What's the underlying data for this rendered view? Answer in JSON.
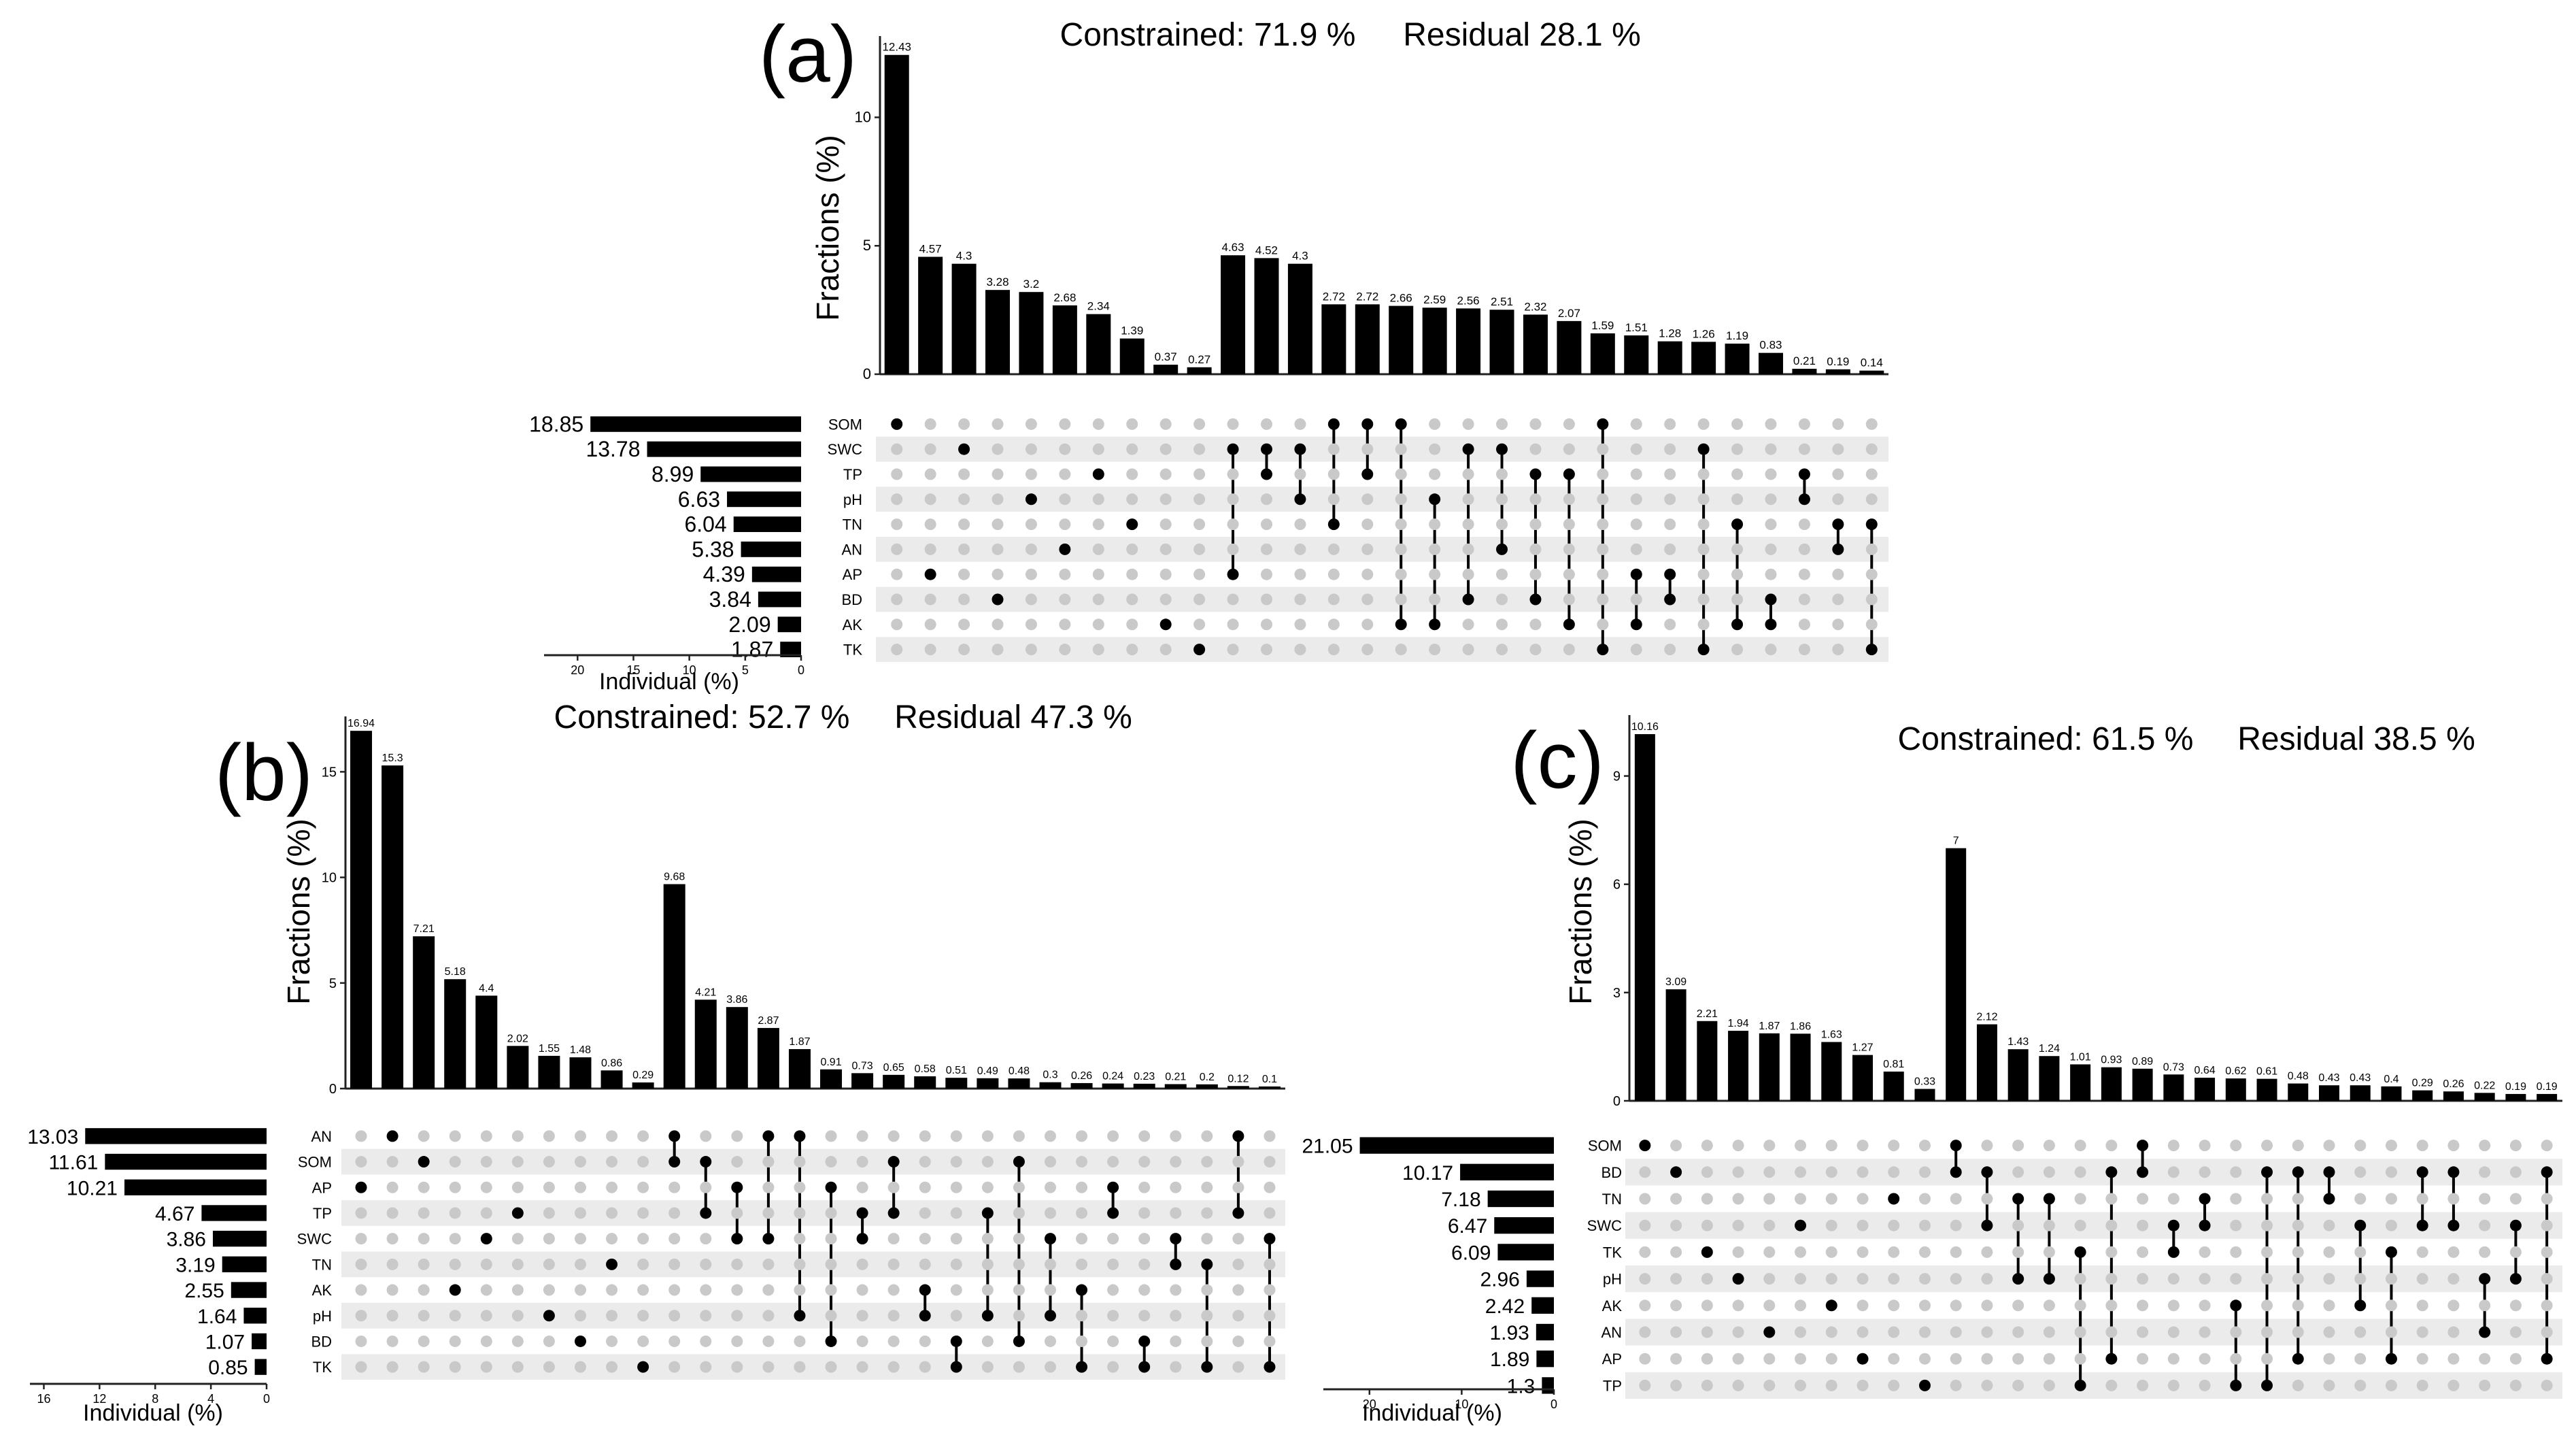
{
  "chart_data": [
    {
      "type": "bar",
      "panel_label": "(a)",
      "constrained_text": "Constrained: 71.9 %",
      "residual_text": "Residual 28.1 %",
      "ylabel": "Fractions (%)",
      "ylim": [
        0,
        12.9
      ],
      "yticks": [
        0,
        5,
        10
      ],
      "xlabel_individual": "Individual (%)",
      "individual_xlim": [
        0,
        23
      ],
      "individual_ticks": [
        20,
        15,
        10,
        5,
        0
      ],
      "sets": [
        "SOM",
        "SWC",
        "TP",
        "pH",
        "TN",
        "AN",
        "AP",
        "BD",
        "AK",
        "TK"
      ],
      "individual": [
        18.85,
        13.78,
        8.99,
        6.63,
        6.04,
        5.38,
        4.39,
        3.84,
        2.09,
        1.87
      ],
      "values": [
        12.43,
        4.57,
        4.3,
        3.28,
        3.2,
        2.68,
        2.34,
        1.39,
        0.37,
        0.27,
        4.63,
        4.52,
        4.3,
        2.72,
        2.72,
        2.66,
        2.59,
        2.56,
        2.51,
        2.32,
        2.07,
        1.59,
        1.51,
        1.28,
        1.26,
        1.19,
        0.83,
        0.21,
        0.19,
        0.14
      ],
      "combinations": [
        [
          "SOM"
        ],
        [
          "AP"
        ],
        [
          "SWC"
        ],
        [
          "BD"
        ],
        [
          "pH"
        ],
        [
          "AN"
        ],
        [
          "TP"
        ],
        [
          "TN"
        ],
        [
          "AK"
        ],
        [
          "TK"
        ],
        [
          "SWC",
          "AP"
        ],
        [
          "SWC",
          "TP"
        ],
        [
          "SWC",
          "pH"
        ],
        [
          "SOM",
          "TN"
        ],
        [
          "SOM",
          "TP"
        ],
        [
          "SOM",
          "AK"
        ],
        [
          "pH",
          "AK"
        ],
        [
          "SWC",
          "BD"
        ],
        [
          "SWC",
          "AN"
        ],
        [
          "TP",
          "BD"
        ],
        [
          "TP",
          "AK"
        ],
        [
          "SOM",
          "TK"
        ],
        [
          "AP",
          "AK"
        ],
        [
          "AP",
          "BD"
        ],
        [
          "SWC",
          "TK"
        ],
        [
          "TN",
          "AK"
        ],
        [
          "BD",
          "AK"
        ],
        [
          "TP",
          "pH"
        ],
        [
          "TN",
          "AN"
        ],
        [
          "TN",
          "TK"
        ]
      ]
    },
    {
      "type": "bar",
      "panel_label": "(b)",
      "constrained_text": "Constrained: 52.7 %",
      "residual_text": "Residual 47.3 %",
      "ylabel": "Fractions (%)",
      "ylim": [
        0,
        17.3
      ],
      "yticks": [
        0,
        5,
        10,
        15
      ],
      "xlabel_individual": "Individual (%)",
      "individual_xlim": [
        0,
        17
      ],
      "individual_ticks": [
        16,
        12,
        8,
        4,
        0
      ],
      "sets": [
        "AN",
        "SOM",
        "AP",
        "TP",
        "SWC",
        "TN",
        "AK",
        "pH",
        "BD",
        "TK"
      ],
      "individual": [
        13.03,
        11.61,
        10.21,
        4.67,
        3.86,
        3.19,
        2.55,
        1.64,
        1.07,
        0.85
      ],
      "values": [
        16.94,
        15.3,
        7.21,
        5.18,
        4.4,
        2.02,
        1.55,
        1.48,
        0.86,
        0.29,
        9.68,
        4.21,
        3.86,
        2.87,
        1.87,
        0.91,
        0.73,
        0.65,
        0.58,
        0.51,
        0.49,
        0.48,
        0.3,
        0.26,
        0.24,
        0.23,
        0.21,
        0.2,
        0.12,
        0.1
      ],
      "combinations": [
        [
          "AP"
        ],
        [
          "AN"
        ],
        [
          "SOM"
        ],
        [
          "AK"
        ],
        [
          "SWC"
        ],
        [
          "TP"
        ],
        [
          "pH"
        ],
        [
          "BD"
        ],
        [
          "TN"
        ],
        [
          "TK"
        ],
        [
          "AN",
          "SOM"
        ],
        [
          "SOM",
          "TP"
        ],
        [
          "AP",
          "SWC"
        ],
        [
          "AN",
          "SWC"
        ],
        [
          "AN",
          "pH"
        ],
        [
          "AP",
          "BD"
        ],
        [
          "TP",
          "SWC"
        ],
        [
          "SOM",
          "TP"
        ],
        [
          "AK",
          "pH"
        ],
        [
          "BD",
          "TK"
        ],
        [
          "TP",
          "pH"
        ],
        [
          "SOM",
          "BD"
        ],
        [
          "SWC",
          "pH"
        ],
        [
          "AK",
          "TK"
        ],
        [
          "AP",
          "TP"
        ],
        [
          "BD",
          "TK"
        ],
        [
          "SWC",
          "TN"
        ],
        [
          "TN",
          "TK"
        ],
        [
          "AN",
          "TP"
        ],
        [
          "SWC",
          "TK"
        ]
      ]
    },
    {
      "type": "bar",
      "panel_label": "(c)",
      "constrained_text": "Constrained: 61.5 %",
      "residual_text": "Residual 38.5 %",
      "ylabel": "Fractions (%)",
      "ylim": [
        0,
        10.5
      ],
      "yticks": [
        0,
        3,
        6,
        9
      ],
      "xlabel_individual": "Individual (%)",
      "individual_xlim": [
        0,
        25
      ],
      "individual_ticks": [
        20,
        10,
        0
      ],
      "sets": [
        "SOM",
        "BD",
        "TN",
        "SWC",
        "TK",
        "pH",
        "AK",
        "AN",
        "AP",
        "TP"
      ],
      "individual": [
        21.05,
        10.17,
        7.18,
        6.47,
        6.09,
        2.96,
        2.42,
        1.93,
        1.89,
        1.3
      ],
      "values": [
        10.16,
        3.09,
        2.21,
        1.94,
        1.87,
        1.86,
        1.63,
        1.27,
        0.81,
        0.33,
        7.0,
        2.12,
        1.43,
        1.24,
        1.01,
        0.93,
        0.89,
        0.73,
        0.64,
        0.62,
        0.61,
        0.48,
        0.43,
        0.43,
        0.4,
        0.29,
        0.26,
        0.22,
        0.19,
        0.19
      ],
      "combinations": [
        [
          "SOM"
        ],
        [
          "BD"
        ],
        [
          "TK"
        ],
        [
          "pH"
        ],
        [
          "AN"
        ],
        [
          "SWC"
        ],
        [
          "AK"
        ],
        [
          "AP"
        ],
        [
          "TN"
        ],
        [
          "TP"
        ],
        [
          "SOM",
          "BD"
        ],
        [
          "BD",
          "SWC"
        ],
        [
          "TN",
          "pH"
        ],
        [
          "TN",
          "pH"
        ],
        [
          "TK",
          "TP"
        ],
        [
          "BD",
          "AP"
        ],
        [
          "SOM",
          "BD"
        ],
        [
          "SWC",
          "TK"
        ],
        [
          "TN",
          "SWC"
        ],
        [
          "AK",
          "TP"
        ],
        [
          "BD",
          "TP"
        ],
        [
          "BD",
          "AP"
        ],
        [
          "BD",
          "TN"
        ],
        [
          "SWC",
          "AK"
        ],
        [
          "TK",
          "AP"
        ],
        [
          "BD",
          "SWC"
        ],
        [
          "BD",
          "SWC"
        ],
        [
          "pH",
          "AN"
        ],
        [
          "SWC",
          "pH"
        ],
        [
          "BD",
          "AP"
        ]
      ]
    }
  ]
}
